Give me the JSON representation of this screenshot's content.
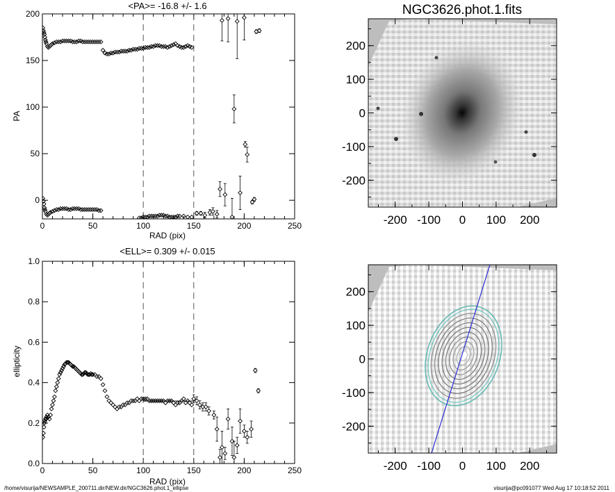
{
  "footer": {
    "path": "/home/visurija/NEWSAMPLE_200711.dir/NEW.dir/NGC3626.phot.1_ellipse",
    "stamp": "visurija@pc091077  Wed Aug 17 10:18:52 2011"
  },
  "images": {
    "title": "NGC3626.phot.1.fits",
    "x_ticks": [
      "-200",
      "-100",
      "0",
      "100",
      "200"
    ],
    "y_ticks": [
      "200",
      "100",
      "0",
      "-100",
      "-200"
    ],
    "range": [
      -280,
      280
    ]
  },
  "chart_data": [
    {
      "type": "scatter",
      "title": "<PA>= -16.8 +/-   1.6",
      "xlabel": "RAD (pix)",
      "ylabel": "PA",
      "xlim": [
        0,
        250
      ],
      "ylim": [
        -20,
        200
      ],
      "x_ticks": [
        0,
        50,
        100,
        150,
        200,
        250
      ],
      "y_ticks": [
        0,
        50,
        100,
        150,
        200
      ],
      "vlines": [
        100,
        150
      ],
      "series": [
        {
          "x": [
            0.5,
            1,
            1.5,
            2,
            2.5,
            3,
            3.5,
            4,
            5,
            6,
            7,
            8,
            9,
            10,
            12,
            14,
            16,
            18,
            20,
            22,
            24,
            26,
            28,
            30,
            32,
            34,
            36,
            38,
            40,
            42,
            44,
            46,
            48,
            50,
            52,
            54,
            56,
            58
          ],
          "y": [
            185,
            182,
            180,
            178,
            175,
            172,
            170,
            168,
            165,
            164,
            165,
            166,
            167,
            168,
            169,
            170,
            170,
            170,
            171,
            171,
            171,
            171,
            171,
            170,
            170,
            170,
            171,
            171,
            170,
            170,
            170,
            170,
            170,
            170,
            170,
            170,
            170,
            170
          ]
        },
        {
          "x": [
            60,
            62,
            64,
            66,
            68,
            70,
            72,
            74,
            76,
            78,
            80,
            82,
            84,
            86,
            88,
            90,
            92,
            94,
            96,
            98,
            100,
            102,
            104,
            106,
            108,
            110,
            112,
            114,
            116,
            118,
            120,
            122,
            124,
            126,
            128,
            130,
            132,
            134,
            136,
            138,
            140,
            142,
            144,
            146,
            148
          ],
          "y": [
            161,
            158,
            157,
            157,
            158,
            158,
            159,
            159,
            159,
            160,
            160,
            160,
            160,
            161,
            161,
            162,
            162,
            162,
            163,
            163,
            163,
            164,
            164,
            164,
            165,
            165,
            166,
            166,
            166,
            165,
            165,
            165,
            164,
            165,
            166,
            167,
            168,
            166,
            165,
            164,
            164,
            165,
            166,
            165,
            164
          ]
        },
        {
          "x": [
            0.5,
            1,
            1.5,
            2,
            2.5,
            3,
            4,
            5,
            6,
            7,
            8,
            10,
            12,
            14,
            16,
            18,
            20,
            22,
            24,
            26,
            28,
            30,
            32,
            34,
            36,
            38,
            40,
            42,
            44,
            46,
            48,
            50,
            52,
            54,
            56,
            58
          ],
          "y": [
            2,
            -1,
            -4,
            -8,
            -10,
            -12,
            -15,
            -16,
            -15,
            -14,
            -13,
            -12,
            -11,
            -10,
            -10,
            -9,
            -9,
            -9,
            -9,
            -10,
            -10,
            -9,
            -9,
            -9,
            -9,
            -10,
            -10,
            -10,
            -10,
            -10,
            -10,
            -10,
            -10,
            -10,
            -11,
            -11
          ]
        },
        {
          "x": [
            96,
            98,
            100,
            102,
            104,
            106,
            108,
            110,
            112,
            114,
            116,
            118,
            120,
            122,
            124,
            126,
            128,
            130,
            132,
            134,
            136,
            140,
            144,
            148
          ],
          "y": [
            -19,
            -19,
            -18,
            -18,
            -18,
            -17,
            -17,
            -17,
            -17,
            -17,
            -16,
            -16,
            -16,
            -17,
            -17,
            -18,
            -18,
            -18,
            -18,
            -17,
            -17,
            -17,
            -18,
            -18
          ]
        }
      ],
      "errpoints": {
        "x": [
          153,
          157,
          161,
          166,
          169,
          173,
          176,
          178,
          181,
          184,
          188,
          190,
          193,
          196,
          200,
          201,
          203,
          208,
          210,
          212,
          215
        ],
        "y": [
          -14,
          -14,
          -16,
          -13,
          -12,
          -15,
          12,
          193,
          6,
          195,
          -18,
          98,
          192,
          8,
          196,
          60,
          49,
          -2,
          1,
          181,
          182
        ],
        "err": [
          2,
          2,
          3,
          3,
          4,
          4,
          8,
          22,
          12,
          25,
          20,
          15,
          40,
          18,
          24,
          3,
          8,
          2,
          2,
          2,
          2
        ]
      }
    },
    {
      "type": "scatter",
      "title": "<ELL>= 0.309 +/-  0.015",
      "xlabel": "RAD (pix)",
      "ylabel": "ellipticity",
      "xlim": [
        0,
        250
      ],
      "ylim": [
        0.0,
        1.0
      ],
      "x_ticks": [
        0,
        50,
        100,
        150,
        200,
        250
      ],
      "y_ticks": [
        0.0,
        0.2,
        0.4,
        0.6,
        0.8,
        1.0
      ],
      "vlines": [
        100,
        150
      ],
      "fit_line": {
        "x": [
          100,
          150
        ],
        "y": [
          0.309,
          0.309
        ]
      },
      "series": [
        {
          "x": [
            0.5,
            1,
            1.5,
            2,
            2.5,
            3,
            3.5,
            4,
            5,
            6,
            7,
            8,
            9,
            10,
            11,
            12,
            13,
            14,
            15,
            16,
            17,
            18,
            19,
            20,
            21,
            22,
            23,
            24,
            25,
            26,
            27,
            28,
            29,
            30,
            31,
            32,
            33,
            34,
            35,
            36,
            37,
            38,
            39,
            40,
            41,
            42,
            43,
            44,
            45,
            46,
            47,
            48,
            49,
            50,
            52,
            54,
            56,
            58
          ],
          "y": [
            0.13,
            0.15,
            0.18,
            0.2,
            0.21,
            0.22,
            0.22,
            0.23,
            0.24,
            0.23,
            0.22,
            0.24,
            0.27,
            0.29,
            0.31,
            0.33,
            0.36,
            0.38,
            0.4,
            0.42,
            0.44,
            0.45,
            0.46,
            0.47,
            0.48,
            0.49,
            0.495,
            0.5,
            0.5,
            0.5,
            0.495,
            0.49,
            0.485,
            0.48,
            0.48,
            0.475,
            0.47,
            0.465,
            0.46,
            0.455,
            0.45,
            0.445,
            0.44,
            0.44,
            0.445,
            0.45,
            0.45,
            0.445,
            0.44,
            0.44,
            0.44,
            0.445,
            0.44,
            0.44,
            0.44,
            0.43,
            0.43,
            0.42
          ]
        },
        {
          "x": [
            60,
            62,
            64,
            66,
            68,
            70,
            72,
            74,
            76,
            78,
            80,
            82,
            84,
            86,
            88,
            90,
            92,
            94,
            96,
            98,
            100,
            102,
            104,
            106,
            108,
            110,
            112,
            114,
            116,
            118,
            120,
            122,
            124,
            126,
            128,
            130,
            132,
            134,
            136,
            138,
            140,
            142,
            144,
            146,
            148
          ],
          "y": [
            0.39,
            0.36,
            0.33,
            0.31,
            0.3,
            0.29,
            0.28,
            0.27,
            0.28,
            0.28,
            0.29,
            0.29,
            0.3,
            0.3,
            0.31,
            0.31,
            0.31,
            0.32,
            0.31,
            0.32,
            0.32,
            0.32,
            0.32,
            0.31,
            0.31,
            0.31,
            0.31,
            0.31,
            0.31,
            0.31,
            0.31,
            0.3,
            0.31,
            0.31,
            0.31,
            0.3,
            0.29,
            0.3,
            0.3,
            0.31,
            0.32,
            0.3,
            0.31,
            0.3,
            0.29
          ]
        }
      ],
      "errpoints": {
        "x": [
          150,
          153,
          156,
          159,
          162,
          165,
          170,
          173,
          176,
          178,
          181,
          184,
          188,
          190,
          193,
          196,
          200,
          203,
          207,
          211,
          214
        ],
        "y": [
          0.32,
          0.31,
          0.29,
          0.28,
          0.28,
          0.26,
          0.24,
          0.17,
          0.03,
          0.08,
          0.05,
          0.22,
          0.11,
          0.03,
          0.09,
          0.21,
          0.16,
          0.13,
          0.17,
          0.46,
          0.36
        ],
        "err": [
          0.02,
          0.02,
          0.02,
          0.02,
          0.02,
          0.02,
          0.02,
          0.06,
          0.04,
          0.08,
          0.03,
          0.05,
          0.07,
          0.08,
          0.04,
          0.06,
          0.03,
          0.03,
          0.04,
          0.01,
          0.01
        ]
      }
    }
  ]
}
